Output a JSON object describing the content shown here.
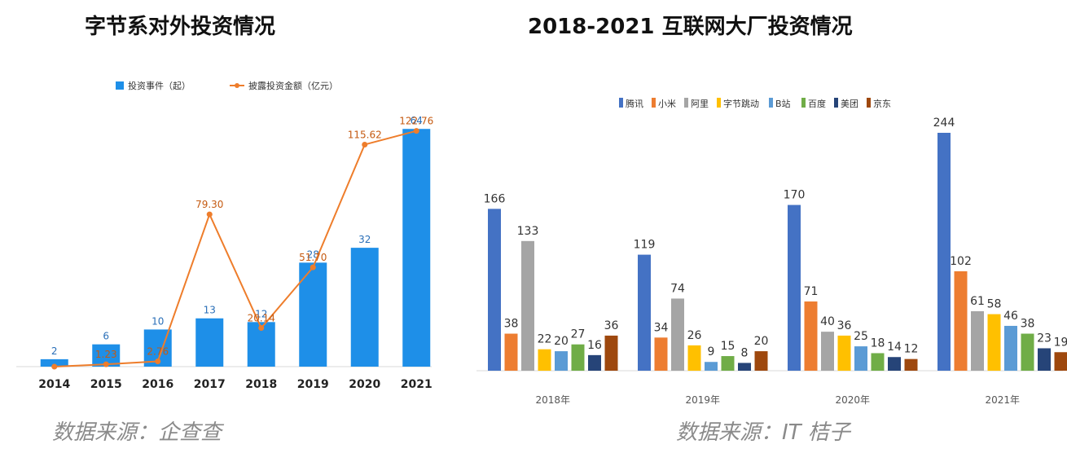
{
  "left": {
    "title": "字节系对外投资情况",
    "source": "数据来源：企查查",
    "colors": {
      "bar": "#1e8fe8",
      "line": "#ee7d2b"
    },
    "chart_data": {
      "type": "bar+line",
      "categories": [
        "2014",
        "2015",
        "2016",
        "2017",
        "2018",
        "2019",
        "2020",
        "2021"
      ],
      "series": [
        {
          "name": "投资事件（起）",
          "type": "bar",
          "values": [
            2,
            6,
            10,
            13,
            12,
            28,
            32,
            64
          ],
          "labels": [
            "2",
            "6",
            "10",
            "13",
            "12",
            "28",
            "32",
            "64"
          ]
        },
        {
          "name": "披露投资金额（亿元）",
          "type": "line",
          "values": [
            0,
            1.23,
            2.76,
            79.3,
            20.14,
            51.7,
            115.62,
            122.76
          ],
          "labels": [
            "",
            "1.23",
            "2.76",
            "79.30",
            "20.14",
            "51.70",
            "115.62",
            "122.76"
          ]
        }
      ],
      "legend": "top",
      "ylim_bar": [
        0,
        68
      ],
      "ylim_line": [
        0,
        140
      ],
      "grid": false
    }
  },
  "right": {
    "title": "2018-2021 互联网大厂投资情况",
    "source": "数据来源：IT 桔子",
    "chart_data": {
      "type": "bar",
      "categories": [
        "2018年",
        "2019年",
        "2020年",
        "2021年"
      ],
      "series": [
        {
          "name": "腾讯",
          "color": "#4472c4",
          "values": [
            166,
            119,
            170,
            244
          ]
        },
        {
          "name": "小米",
          "color": "#ed7d31",
          "values": [
            38,
            34,
            71,
            102
          ]
        },
        {
          "name": "阿里",
          "color": "#a5a5a5",
          "values": [
            133,
            74,
            40,
            61
          ]
        },
        {
          "name": "字节跳动",
          "color": "#ffc000",
          "values": [
            22,
            26,
            36,
            58
          ]
        },
        {
          "name": "B站",
          "color": "#5b9bd5",
          "values": [
            20,
            9,
            25,
            46
          ]
        },
        {
          "name": "百度",
          "color": "#70ad47",
          "values": [
            27,
            15,
            18,
            38
          ]
        },
        {
          "name": "美团",
          "color": "#264478",
          "values": [
            16,
            8,
            14,
            23
          ]
        },
        {
          "name": "京东",
          "color": "#9e480e",
          "values": [
            36,
            20,
            12,
            19
          ]
        }
      ],
      "legend": "top",
      "ylim": [
        0,
        260
      ],
      "grid": false
    }
  }
}
